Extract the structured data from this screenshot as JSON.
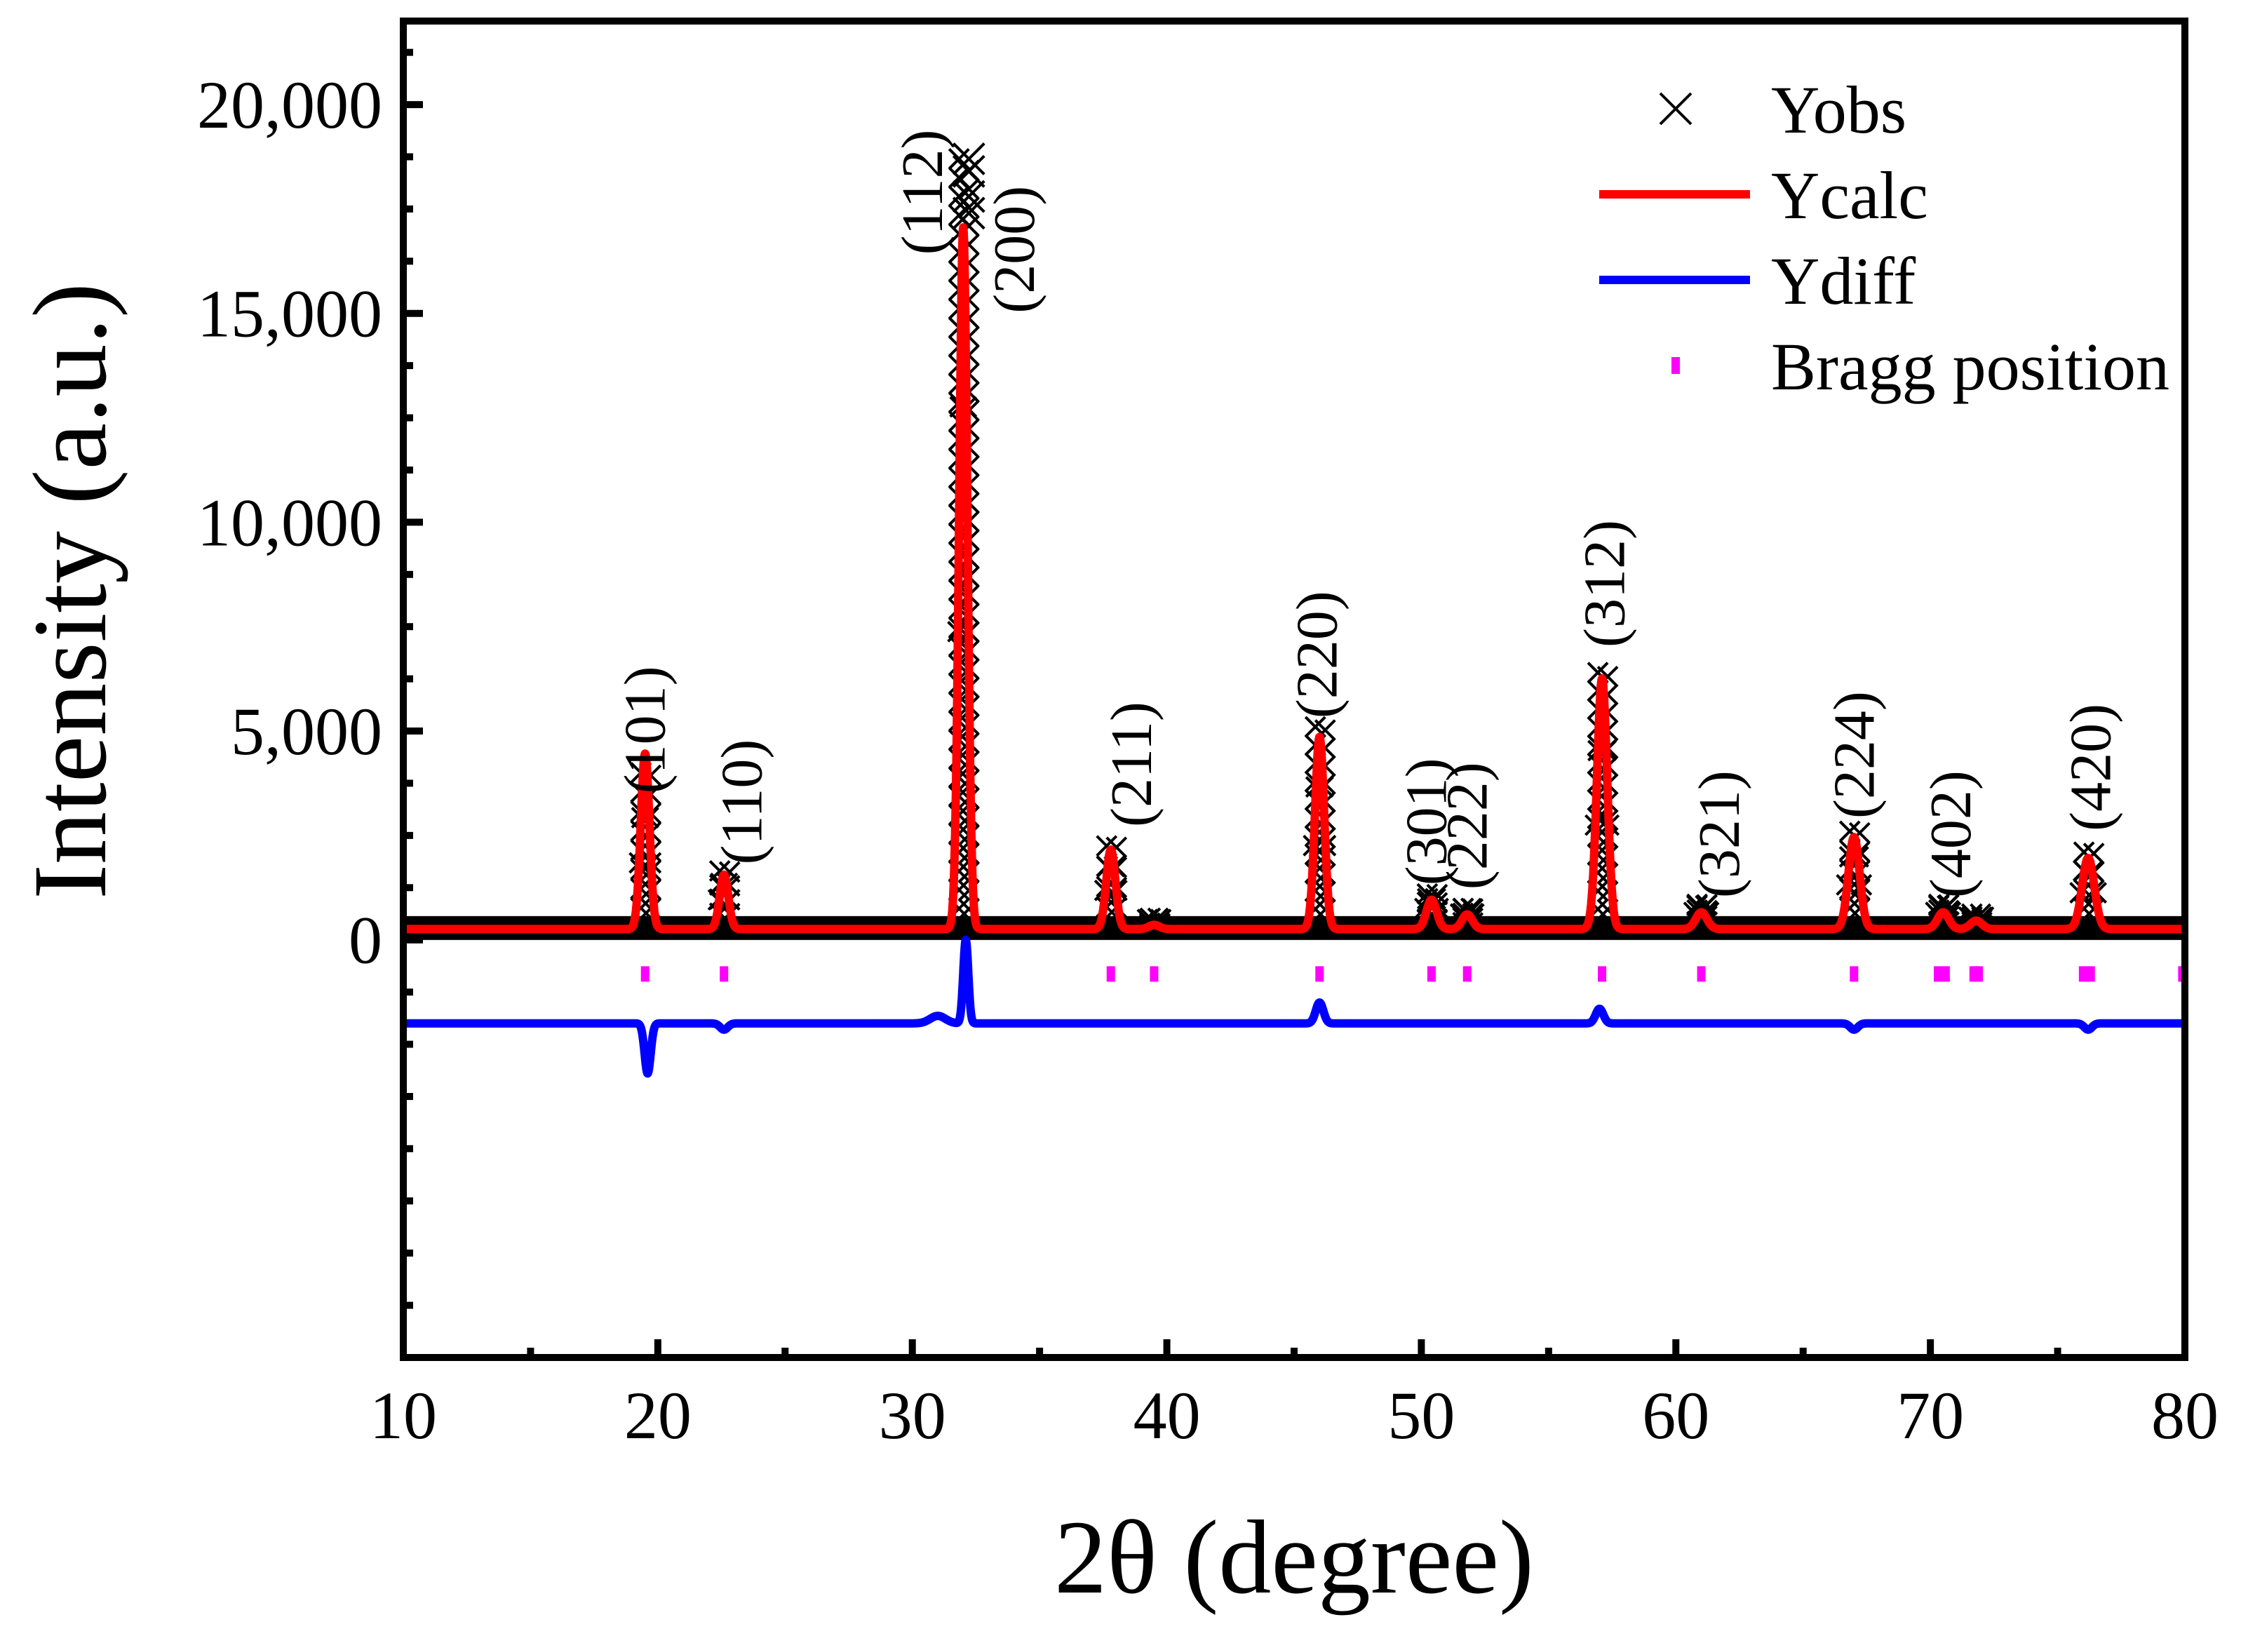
{
  "chart_data": {
    "type": "line",
    "xlabel": "2θ (degree)",
    "ylabel": "Intensity (a.u.)",
    "xlim": [
      10,
      80
    ],
    "ylim": [
      -10000,
      22000
    ],
    "x_ticks": [
      10,
      20,
      30,
      40,
      50,
      60,
      70,
      80
    ],
    "x_tick_labels": [
      "10",
      "20",
      "30",
      "40",
      "50",
      "60",
      "70",
      "80"
    ],
    "y_ticks": [
      0,
      5000,
      10000,
      15000,
      20000
    ],
    "y_tick_labels": [
      "0",
      "5,000",
      "10,000",
      "15,000",
      "20,000"
    ],
    "background": 300,
    "diff_offset": -2000,
    "bragg_level": -800,
    "colors": {
      "obs": "#000000",
      "calc": "#ff0000",
      "diff": "#0000ff",
      "bragg": "#ff00ff"
    },
    "peaks": [
      {
        "hkl": "(101)",
        "two_theta": 19.5,
        "calc": 4200,
        "obs": 3700,
        "width": 0.17
      },
      {
        "hkl": "(110)",
        "two_theta": 22.6,
        "calc": 1300,
        "obs": 1350,
        "width": 0.17
      },
      {
        "hkl": "(112)",
        "two_theta": 32.0,
        "calc": 16800,
        "obs": 18400,
        "width": 0.16
      },
      {
        "hkl": "(200)",
        "two_theta": 32.2,
        "calc": 0,
        "obs": 0,
        "width": 0.16
      },
      {
        "hkl": "(211)",
        "two_theta": 37.8,
        "calc": 1900,
        "obs": 1950,
        "width": 0.18
      },
      {
        "hkl": "",
        "two_theta": 39.5,
        "calc": 100,
        "obs": 100,
        "width": 0.2
      },
      {
        "hkl": "(220)",
        "two_theta": 46.0,
        "calc": 4600,
        "obs": 4800,
        "width": 0.18
      },
      {
        "hkl": "(301)",
        "two_theta": 50.4,
        "calc": 700,
        "obs": 800,
        "width": 0.2
      },
      {
        "hkl": "(222)",
        "two_theta": 51.8,
        "calc": 350,
        "obs": 450,
        "width": 0.2
      },
      {
        "hkl": "(312)",
        "two_theta": 57.1,
        "calc": 6000,
        "obs": 6100,
        "width": 0.2
      },
      {
        "hkl": "(321)",
        "two_theta": 61.0,
        "calc": 400,
        "obs": 550,
        "width": 0.22
      },
      {
        "hkl": "(224)",
        "two_theta": 67.0,
        "calc": 2200,
        "obs": 2300,
        "width": 0.22
      },
      {
        "hkl": "(402)",
        "two_theta": 70.5,
        "calc": 400,
        "obs": 550,
        "width": 0.22
      },
      {
        "hkl": "",
        "two_theta": 71.8,
        "calc": 200,
        "obs": 250,
        "width": 0.22
      },
      {
        "hkl": "(420)",
        "two_theta": 76.2,
        "calc": 1700,
        "obs": 1800,
        "width": 0.24
      }
    ],
    "bragg_positions": [
      19.5,
      22.6,
      32.1,
      37.8,
      39.5,
      46.0,
      50.4,
      51.8,
      57.1,
      61.0,
      67.0,
      70.3,
      70.6,
      71.7,
      71.9,
      76.0,
      76.3,
      79.9
    ],
    "diff_features": [
      {
        "two_theta": 19.6,
        "amp": -1200,
        "width": 0.12
      },
      {
        "two_theta": 22.6,
        "amp": -150,
        "width": 0.15
      },
      {
        "two_theta": 31.0,
        "amp": 180,
        "width": 0.3
      },
      {
        "two_theta": 32.1,
        "amp": 2000,
        "width": 0.1
      },
      {
        "two_theta": 46.0,
        "amp": 500,
        "width": 0.15
      },
      {
        "two_theta": 57.0,
        "amp": 350,
        "width": 0.15
      },
      {
        "two_theta": 67.0,
        "amp": -150,
        "width": 0.15
      },
      {
        "two_theta": 76.2,
        "amp": -150,
        "width": 0.15
      }
    ],
    "peak_labels": [
      {
        "text": "(101)",
        "x": 19.5,
        "y": 3500
      },
      {
        "text": "(110)",
        "x": 23.3,
        "y": 1800
      },
      {
        "text": "(112)",
        "x": 30.4,
        "y": 16400
      },
      {
        "text": "(200)",
        "x": 34.0,
        "y": 15000
      },
      {
        "text": "(211)",
        "x": 38.6,
        "y": 2700
      },
      {
        "text": "(220)",
        "x": 45.9,
        "y": 5300
      },
      {
        "text": "(301)",
        "x": 50.2,
        "y": 1300
      },
      {
        "text": "(222)",
        "x": 51.8,
        "y": 1200
      },
      {
        "text": "(312)",
        "x": 57.2,
        "y": 7000
      },
      {
        "text": "(321)",
        "x": 61.7,
        "y": 1000
      },
      {
        "text": "(224)",
        "x": 67.0,
        "y": 2900
      },
      {
        "text": "(402)",
        "x": 70.8,
        "y": 1000
      },
      {
        "text": "(420)",
        "x": 76.3,
        "y": 2600
      }
    ],
    "legend": [
      {
        "label": "Yobs",
        "style": "x-marker"
      },
      {
        "label": "Ycalc",
        "style": "red-line"
      },
      {
        "label": "Ydiff",
        "style": "blue-line"
      },
      {
        "label": "Bragg position",
        "style": "magenta-tick"
      }
    ],
    "legend_position": "top-right"
  }
}
